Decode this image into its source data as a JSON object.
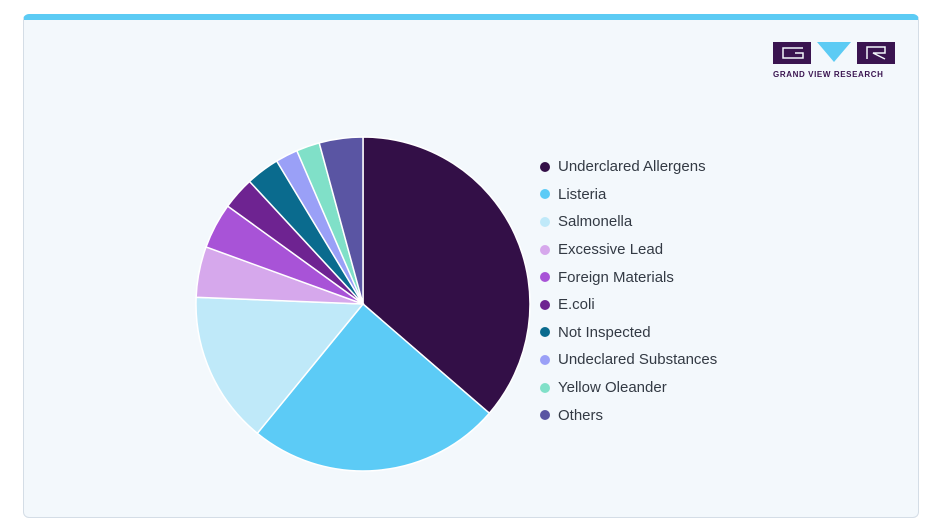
{
  "brand": {
    "name": "GRAND VIEW RESEARCH"
  },
  "chart_data": {
    "type": "pie",
    "title": "",
    "start_angle_deg": 0,
    "direction": "clockwise",
    "slices": [
      {
        "label": "Underclared Allergens",
        "value": 37.0,
        "color": "#330f47"
      },
      {
        "label": "Listeria",
        "value": 25.0,
        "color": "#5ccbf6"
      },
      {
        "label": "Salmonella",
        "value": 15.0,
        "color": "#bfe9f9"
      },
      {
        "label": "Excessive Lead",
        "value": 5.0,
        "color": "#d6a8ec"
      },
      {
        "label": "Foreign Materials",
        "value": 4.5,
        "color": "#a853d7"
      },
      {
        "label": "E.coli",
        "value": 3.2,
        "color": "#6e2391"
      },
      {
        "label": "Not Inspected",
        "value": 3.3,
        "color": "#0a6b8e"
      },
      {
        "label": "Undeclared Substances",
        "value": 2.2,
        "color": "#9aa0f7"
      },
      {
        "label": "Yellow Oleander",
        "value": 2.3,
        "color": "#80e0c8"
      },
      {
        "label": "Others",
        "value": 4.3,
        "color": "#5a55a3"
      }
    ],
    "legend_position": "right"
  }
}
